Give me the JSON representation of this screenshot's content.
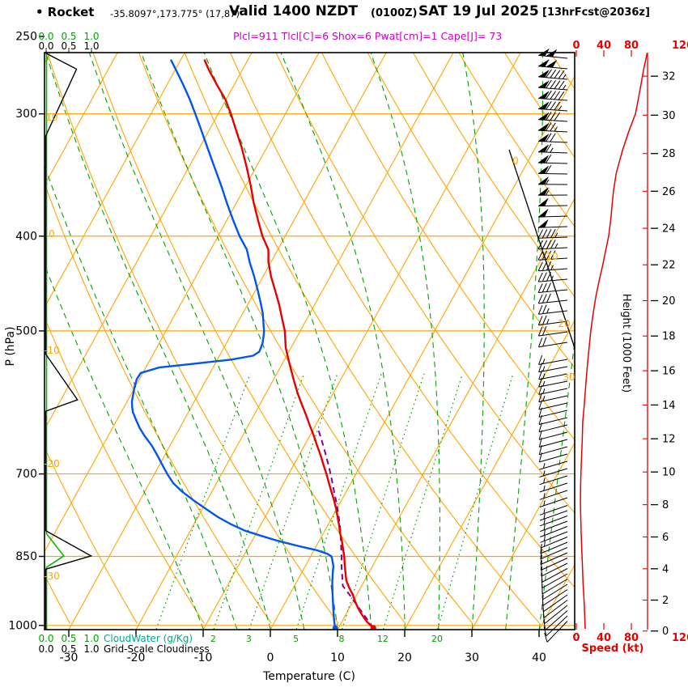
{
  "header": {
    "station_label": "• Rocket",
    "coords": "-35.8097°,173.775° (17,87)",
    "valid_main": "Valid 1400 NZDT",
    "valid_zulu": "(0100Z)",
    "valid_date": "SAT 19 Jul 2025",
    "fcst_tag": "[13hrFcst@2036z]",
    "indices": "Plcl=911 Tlcl[C]=6 Shox=6 Pwat[cm]=1 Cape[J]= 73"
  },
  "axes": {
    "pressure_title": "P (hPa)",
    "temperature_title": "Temperature (C)",
    "height_title": "Height (1000 Feet)",
    "speed_title": "Speed (kt)",
    "cloudwater_label": "CloudWater (g/Kg)",
    "cloudiness_label": "Grid-Scale Cloudiness",
    "cloud_scale_ticks": [
      "0.0",
      "0.5",
      "1.0"
    ]
  },
  "colors": {
    "grid_orange": "#FFA500",
    "green": "#00A400",
    "cloudwater_green": "#00BB00",
    "cloudwater_text": "#00AA88",
    "temp_red": "#E60000",
    "dew_blue": "#0055EE",
    "parcel_purple": "#8B008B",
    "indices_magenta": "#CC00CC",
    "speed_red": "#E60000",
    "black": "#000000"
  },
  "chart_data": {
    "type": "skewt_logp_sounding",
    "pressure_axis": {
      "labeled_ticks": [
        250,
        300,
        400,
        500,
        700,
        850,
        1000
      ],
      "gridlines": [
        300,
        400,
        500,
        700,
        850,
        1000
      ],
      "top_hpa": 260,
      "bottom_hpa": 1010
    },
    "temperature_axis": {
      "ticks": [
        -30,
        -20,
        -10,
        0,
        10,
        20,
        30,
        40
      ],
      "unit": "C"
    },
    "height_axis": {
      "min_kft": 0,
      "max_kft": 32,
      "step_kft": 2
    },
    "speed_axis": {
      "ticks": [
        0,
        40,
        80,
        120
      ],
      "unit": "kt"
    },
    "isotherms_c": {
      "start": -120,
      "end": 40,
      "step": 10
    },
    "dry_adiabats_c": {
      "start": -40,
      "end": 140,
      "step": 10
    },
    "moist_adiabats_c": [
      -10,
      -5,
      0,
      5,
      10,
      15,
      20,
      25,
      30,
      35,
      40
    ],
    "mixing_ratio_gkg": [
      1,
      2,
      3,
      5,
      8,
      12,
      20
    ],
    "mixing_ratio_labels": [
      2,
      3,
      5,
      8,
      12,
      20
    ],
    "dry_adiabat_edge_labels": [
      [
        10,
        149
      ],
      [
        0,
        293
      ],
      [
        -10,
        437
      ],
      [
        -20,
        577
      ],
      [
        -30,
        716
      ]
    ],
    "isotherm_edge_labels": [
      [
        0,
        637,
        203
      ],
      [
        10,
        682,
        321
      ],
      [
        20,
        697,
        404
      ],
      [
        30,
        703,
        470
      ]
    ],
    "indices": {
      "plcl_hpa": 911,
      "tlcl_c": 6,
      "showalter": 6,
      "pwat_cm": 1,
      "cape_j": 73
    },
    "surface": {
      "pressure_hpa": 1006,
      "temp_c": 15.2,
      "dewpoint_c": 9.5
    },
    "temperature_profile": [
      [
        1006,
        15.2
      ],
      [
        990,
        13.6
      ],
      [
        975,
        12.4
      ],
      [
        960,
        11.3
      ],
      [
        945,
        10.3
      ],
      [
        930,
        9.4
      ],
      [
        915,
        8.3
      ],
      [
        900,
        7.3
      ],
      [
        885,
        6.6
      ],
      [
        870,
        5.9
      ],
      [
        850,
        5.0
      ],
      [
        835,
        4.2
      ],
      [
        820,
        3.4
      ],
      [
        805,
        2.5
      ],
      [
        790,
        1.7
      ],
      [
        775,
        0.8
      ],
      [
        760,
        -0.1
      ],
      [
        745,
        -1.1
      ],
      [
        730,
        -2.2
      ],
      [
        715,
        -3.3
      ],
      [
        700,
        -4.4
      ],
      [
        685,
        -5.6
      ],
      [
        670,
        -6.8
      ],
      [
        655,
        -8.1
      ],
      [
        640,
        -9.4
      ],
      [
        625,
        -10.8
      ],
      [
        610,
        -12.2
      ],
      [
        595,
        -13.7
      ],
      [
        580,
        -15.2
      ],
      [
        565,
        -16.6
      ],
      [
        550,
        -18.0
      ],
      [
        535,
        -19.4
      ],
      [
        520,
        -20.8
      ],
      [
        500,
        -22.3
      ],
      [
        485,
        -23.8
      ],
      [
        470,
        -25.3
      ],
      [
        455,
        -27.0
      ],
      [
        440,
        -28.8
      ],
      [
        425,
        -30.4
      ],
      [
        413,
        -31.4
      ],
      [
        400,
        -33.4
      ],
      [
        385,
        -35.4
      ],
      [
        370,
        -37.4
      ],
      [
        355,
        -39.3
      ],
      [
        340,
        -41.4
      ],
      [
        325,
        -43.7
      ],
      [
        310,
        -46.3
      ],
      [
        300,
        -48.1
      ],
      [
        290,
        -50.1
      ],
      [
        280,
        -52.6
      ],
      [
        270,
        -55.1
      ],
      [
        264,
        -56.5
      ]
    ],
    "dewpoint_profile": [
      [
        1006,
        9.5
      ],
      [
        985,
        8.6
      ],
      [
        965,
        7.8
      ],
      [
        945,
        7.0
      ],
      [
        925,
        6.2
      ],
      [
        905,
        5.4
      ],
      [
        885,
        4.7
      ],
      [
        870,
        4.2
      ],
      [
        855,
        3.4
      ],
      [
        850,
        3.1
      ],
      [
        845,
        2.3
      ],
      [
        838,
        0.5
      ],
      [
        830,
        -2.5
      ],
      [
        820,
        -6.0
      ],
      [
        810,
        -9.0
      ],
      [
        800,
        -11.9
      ],
      [
        788,
        -14.5
      ],
      [
        775,
        -17.0
      ],
      [
        760,
        -19.5
      ],
      [
        745,
        -22.0
      ],
      [
        730,
        -24.4
      ],
      [
        715,
        -26.5
      ],
      [
        700,
        -28.1
      ],
      [
        685,
        -29.6
      ],
      [
        670,
        -31.1
      ],
      [
        655,
        -32.7
      ],
      [
        640,
        -34.6
      ],
      [
        628,
        -36.0
      ],
      [
        615,
        -37.3
      ],
      [
        605,
        -38.3
      ],
      [
        598,
        -38.8
      ],
      [
        590,
        -39.3
      ],
      [
        580,
        -39.7
      ],
      [
        570,
        -40.1
      ],
      [
        560,
        -40.4
      ],
      [
        552,
        -40.3
      ],
      [
        545,
        -38.0
      ],
      [
        540,
        -33.0
      ],
      [
        535,
        -28.0
      ],
      [
        530,
        -25.0
      ],
      [
        525,
        -24.4
      ],
      [
        515,
        -24.6
      ],
      [
        505,
        -25.1
      ],
      [
        500,
        -25.4
      ],
      [
        490,
        -26.2
      ],
      [
        480,
        -27.0
      ],
      [
        470,
        -28.0
      ],
      [
        455,
        -29.6
      ],
      [
        440,
        -31.3
      ],
      [
        425,
        -33.2
      ],
      [
        413,
        -34.6
      ],
      [
        400,
        -36.8
      ],
      [
        385,
        -39.1
      ],
      [
        370,
        -41.4
      ],
      [
        355,
        -43.7
      ],
      [
        340,
        -46.2
      ],
      [
        325,
        -48.8
      ],
      [
        310,
        -51.5
      ],
      [
        300,
        -53.4
      ],
      [
        290,
        -55.4
      ],
      [
        280,
        -57.6
      ],
      [
        270,
        -60.0
      ],
      [
        264,
        -61.5
      ]
    ],
    "parcel_profile": [
      [
        1006,
        15.2
      ],
      [
        980,
        13.1
      ],
      [
        955,
        11.0
      ],
      [
        930,
        8.9
      ],
      [
        911,
        7.2
      ],
      [
        890,
        6.3
      ],
      [
        870,
        5.4
      ],
      [
        850,
        4.6
      ],
      [
        830,
        3.7
      ],
      [
        810,
        2.8
      ],
      [
        790,
        1.8
      ],
      [
        770,
        0.7
      ],
      [
        750,
        -0.5
      ],
      [
        730,
        -1.8
      ],
      [
        710,
        -3.1
      ],
      [
        690,
        -4.5
      ],
      [
        670,
        -6.0
      ],
      [
        650,
        -7.6
      ],
      [
        630,
        -9.3
      ]
    ],
    "wind_anchors": [
      [
        1008,
        13,
        222
      ],
      [
        990,
        12.5,
        224
      ],
      [
        970,
        12,
        228
      ],
      [
        950,
        11.5,
        232
      ],
      [
        930,
        10.8,
        235
      ],
      [
        910,
        10,
        238
      ],
      [
        890,
        9.4,
        240
      ],
      [
        871,
        9,
        242
      ],
      [
        850,
        8.3,
        246
      ],
      [
        825,
        7.6,
        247
      ],
      [
        806,
        7,
        248
      ],
      [
        775,
        6.5,
        250
      ],
      [
        750,
        6,
        251
      ],
      [
        720,
        6.2,
        252
      ],
      [
        696,
        6.8,
        253
      ],
      [
        670,
        7.8,
        254
      ],
      [
        640,
        8.8,
        255
      ],
      [
        620,
        9.3,
        256
      ],
      [
        596,
        11.5,
        257
      ],
      [
        575,
        13.2,
        258
      ],
      [
        553,
        15,
        259
      ],
      [
        525,
        18,
        260
      ],
      [
        500,
        21,
        262
      ],
      [
        480,
        24.5,
        263
      ],
      [
        461,
        28.5,
        264
      ],
      [
        445,
        33,
        265
      ],
      [
        428,
        38.5,
        266
      ],
      [
        413,
        43,
        267
      ],
      [
        400,
        47,
        268
      ],
      [
        385,
        50,
        268
      ],
      [
        372,
        52,
        269
      ],
      [
        360,
        54,
        270
      ],
      [
        345,
        58,
        271
      ],
      [
        327,
        67,
        272
      ],
      [
        313,
        76,
        273
      ],
      [
        300,
        86,
        274
      ],
      [
        290,
        90,
        274
      ],
      [
        280,
        94,
        275
      ],
      [
        270,
        98,
        275
      ],
      [
        260,
        103,
        276
      ]
    ],
    "cloudiness_profile": [
      [
        260,
        0
      ],
      [
        270,
        0.68
      ],
      [
        316,
        0
      ],
      [
        528,
        0
      ],
      [
        588,
        0.7
      ],
      [
        604,
        0
      ],
      [
        800,
        0
      ],
      [
        849,
        1.0
      ],
      [
        876,
        0
      ],
      [
        1009,
        0
      ]
    ],
    "cloudwater_profile": [
      [
        260,
        0
      ],
      [
        806,
        0
      ],
      [
        849,
        0.38
      ],
      [
        872,
        0
      ],
      [
        1009,
        0
      ]
    ]
  }
}
